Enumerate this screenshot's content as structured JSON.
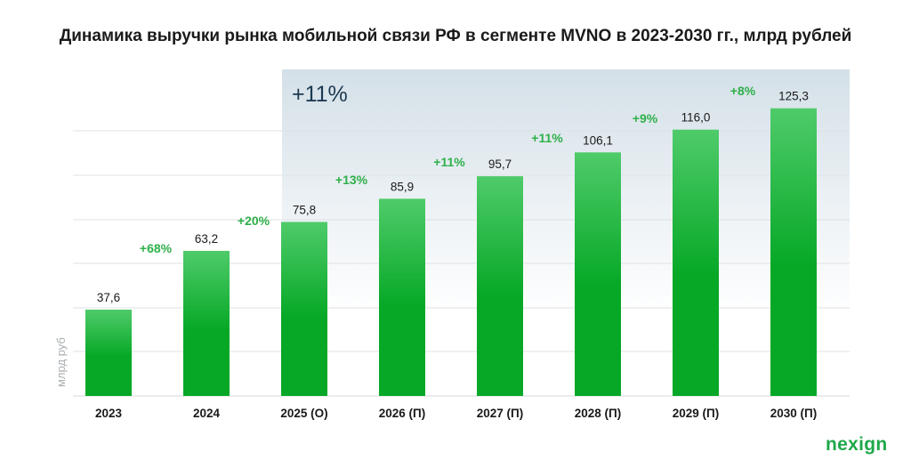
{
  "title": "Динамика выручки рынка мобильной связи РФ в сегменте MVNO в 2023-2030 гг., млрд рублей",
  "logo_text": "nexign",
  "chart_data": {
    "type": "bar",
    "title": "Динамика выручки рынка мобильной связи РФ в сегменте MVNO в 2023-2030 гг., млрд рублей",
    "ylabel": "млрд руб",
    "xlabel": "",
    "categories": [
      "2023",
      "2024",
      "2025 (О)",
      "2026 (П)",
      "2027 (П)",
      "2028 (П)",
      "2029 (П)",
      "2030 (П)"
    ],
    "values": [
      37.6,
      63.2,
      75.8,
      85.9,
      95.7,
      106.1,
      116.0,
      125.3
    ],
    "value_labels": [
      "37,6",
      "63,2",
      "75,8",
      "85,9",
      "95,7",
      "106,1",
      "116,0",
      "125,3"
    ],
    "growth_labels": [
      "+68%",
      "+20%",
      "+13%",
      "+11%",
      "+11%",
      "+9%",
      "+8%"
    ],
    "highlight": {
      "from": "2025 (О)",
      "to": "2030 (П)",
      "label": "+11%"
    },
    "grid": true,
    "colors": {
      "bar_top": "#4fcb6a",
      "bar_bottom": "#06a826",
      "growth": "#2fb04a",
      "highlight": "#d4e0e8",
      "highlight_text": "#1d3a52"
    }
  }
}
